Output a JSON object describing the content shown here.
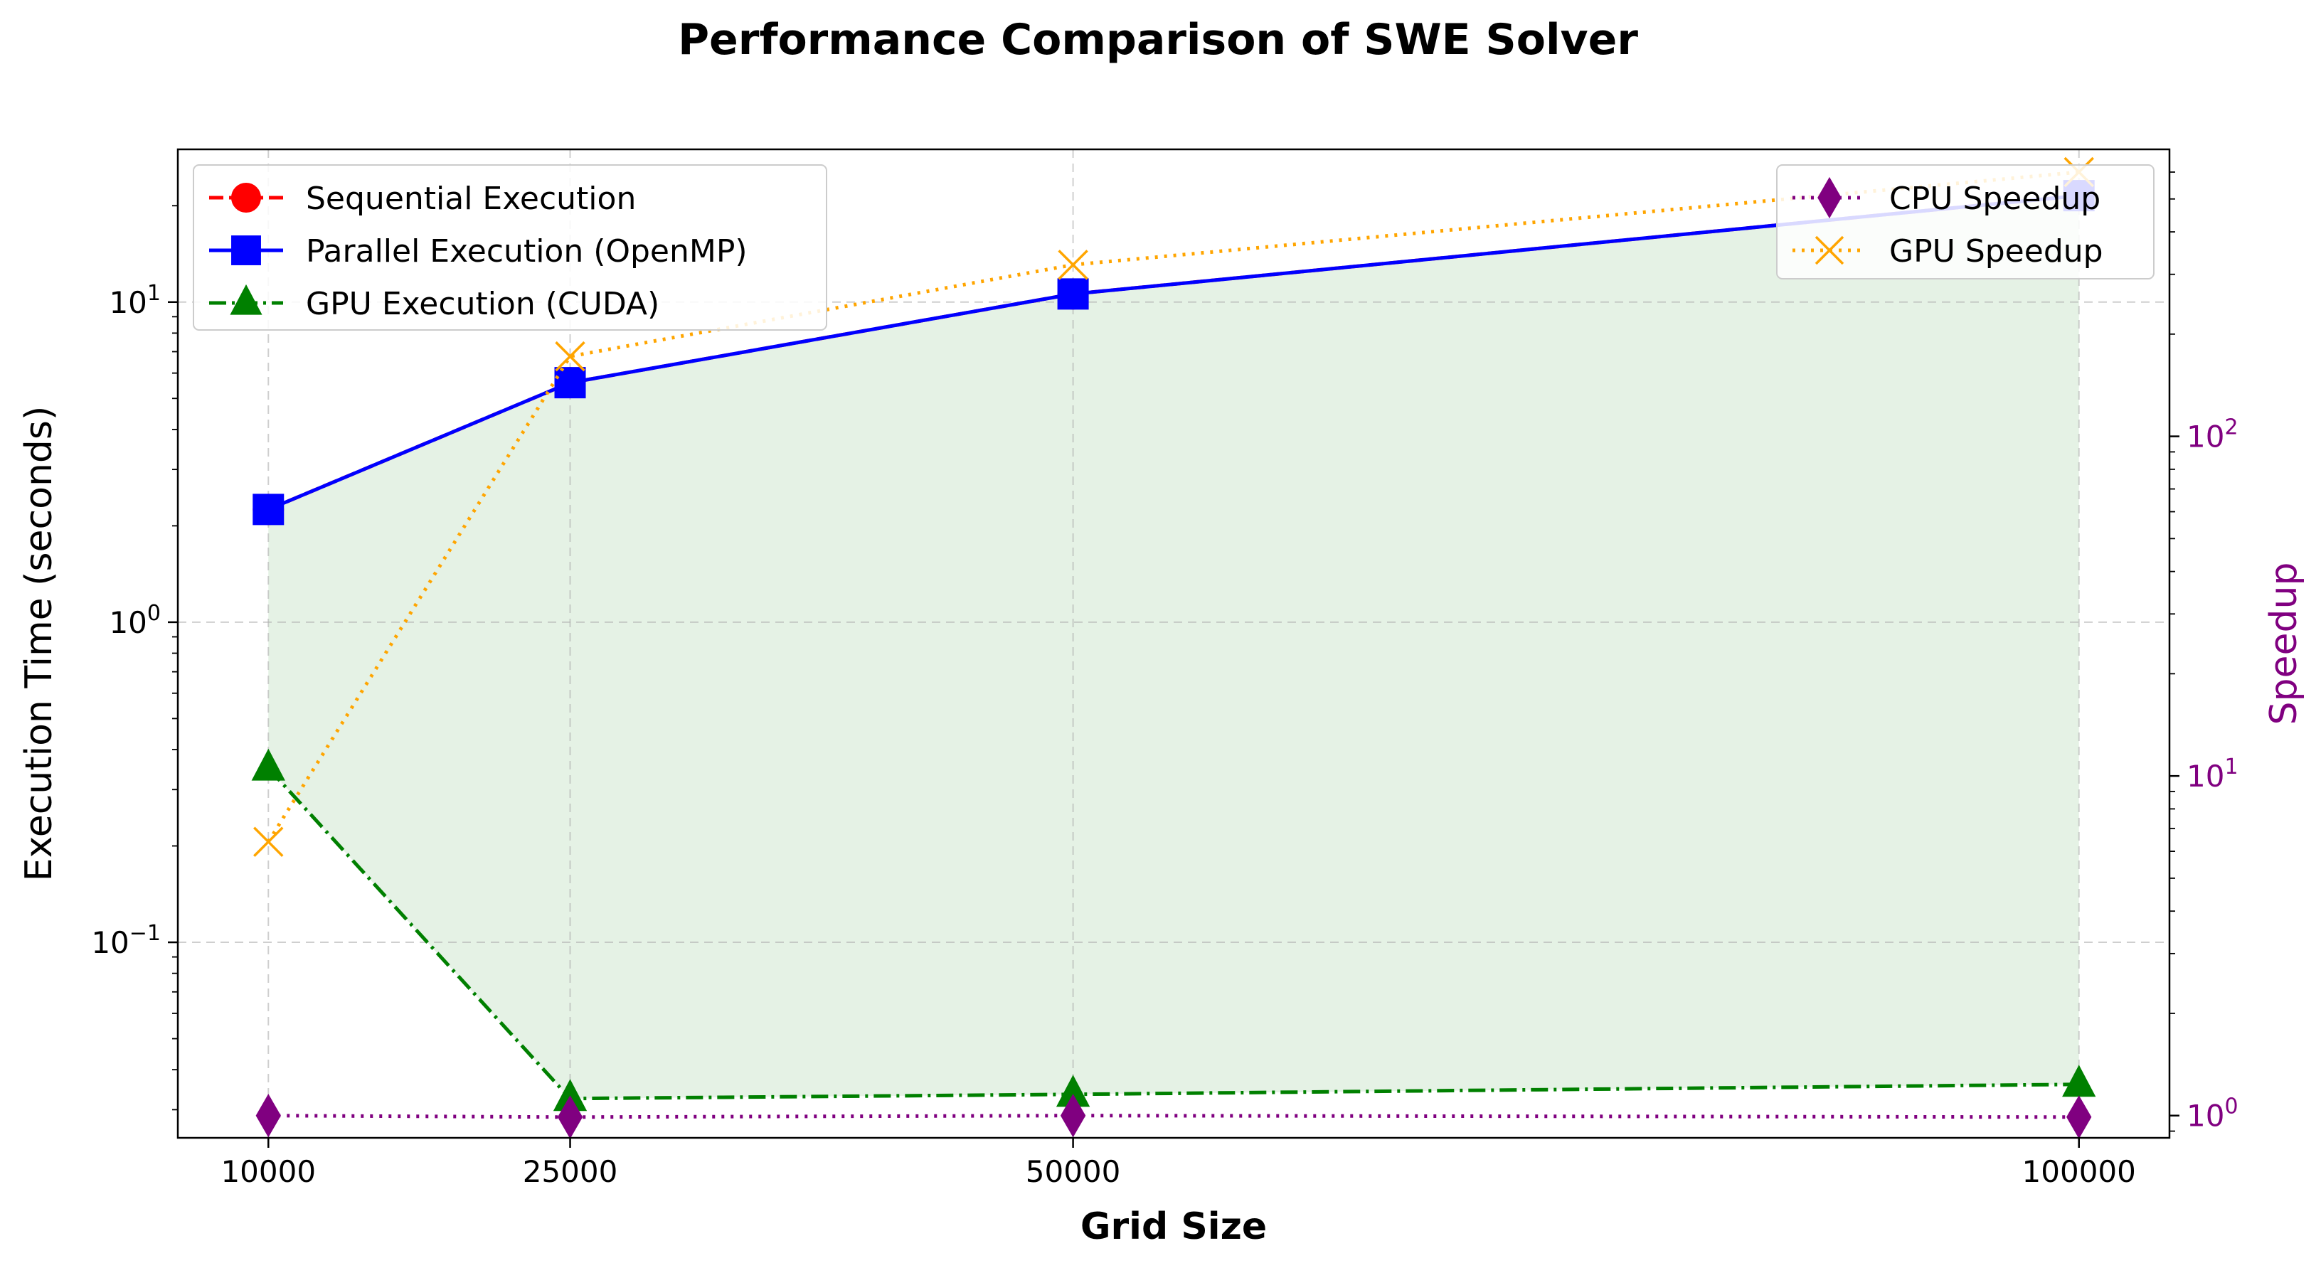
{
  "chart_data": {
    "type": "line",
    "title": "Performance Comparison of SWE Solver",
    "xlabel": "Grid Size",
    "ylabel": "Execution Time (seconds)",
    "y2label": "Speedup",
    "x": [
      10000,
      25000,
      50000,
      100000
    ],
    "x_tick_labels": [
      "10000",
      "25000",
      "50000",
      "100000"
    ],
    "x_scale": "linear",
    "xlim": [
      5500,
      104500
    ],
    "y_scale": "log",
    "ylim": [
      0.0245,
      30
    ],
    "y_ticks": [
      {
        "value": 0.1,
        "base": "10",
        "exp": "−1"
      },
      {
        "value": 1,
        "base": "10",
        "exp": "0"
      },
      {
        "value": 10,
        "base": "10",
        "exp": "1"
      }
    ],
    "y2_scale": "log",
    "y2lim": [
      0.86,
      700
    ],
    "y2_ticks": [
      {
        "value": 1,
        "base": "10",
        "exp": "0"
      },
      {
        "value": 10,
        "base": "10",
        "exp": "1"
      },
      {
        "value": 100,
        "base": "10",
        "exp": "2"
      }
    ],
    "grid": true,
    "series": [
      {
        "name": "Sequential Execution",
        "axis": "left",
        "color": "#ff0000",
        "marker": "circle",
        "linestyle": "dashed",
        "values": [
          2.25,
          5.6,
          10.6,
          21.5
        ]
      },
      {
        "name": "Parallel Execution (OpenMP)",
        "axis": "left",
        "color": "#0000ff",
        "marker": "square",
        "linestyle": "solid",
        "values": [
          2.25,
          5.6,
          10.6,
          21.5
        ]
      },
      {
        "name": "GPU Execution (CUDA)",
        "axis": "left",
        "color": "#008000",
        "marker": "triangle",
        "linestyle": "dashdot",
        "values": [
          0.35,
          0.0325,
          0.0335,
          0.036
        ]
      },
      {
        "name": "CPU Speedup",
        "axis": "right",
        "color": "#800080",
        "marker": "diamond",
        "linestyle": "dotted",
        "values": [
          1.0,
          0.99,
          1.0,
          0.99
        ]
      },
      {
        "name": "GPU Speedup",
        "axis": "right",
        "color": "#ffa500",
        "marker": "x",
        "linestyle": "dotted",
        "values": [
          6.4,
          172,
          320,
          600
        ]
      }
    ],
    "fill_between": {
      "lower": "GPU Execution (CUDA)",
      "upper": "Parallel Execution (OpenMP)",
      "color": "#008000",
      "opacity": 0.1
    },
    "legend_left_placement": "upper left",
    "legend_right_placement": "upper right",
    "colors": {
      "right_axis": "#800080",
      "grid": "#b0b0b0"
    }
  }
}
